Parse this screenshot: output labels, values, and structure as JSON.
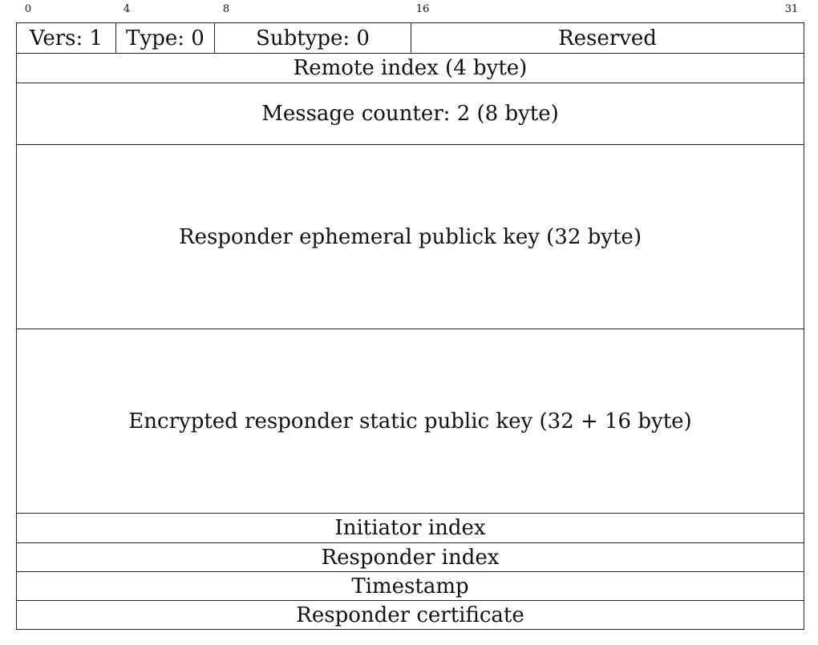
{
  "bit_labels": [
    "0",
    "4",
    "8",
    "16",
    "31"
  ],
  "header_fields": [
    {
      "label": "Vers: 1"
    },
    {
      "label": "Type: 0"
    },
    {
      "label": "Subtype: 0"
    },
    {
      "label": "Reserved"
    }
  ],
  "rows": [
    {
      "label": "Remote index (4 byte)"
    },
    {
      "label": "Message counter: 2 (8 byte)"
    },
    {
      "label": "Responder ephemeral publick key (32 byte)"
    },
    {
      "label": "Encrypted responder static public key (32 + 16 byte)"
    },
    {
      "label": "Initiator index"
    },
    {
      "label": "Responder index"
    },
    {
      "label": "Timestamp"
    },
    {
      "label": "Responder certificate"
    }
  ]
}
